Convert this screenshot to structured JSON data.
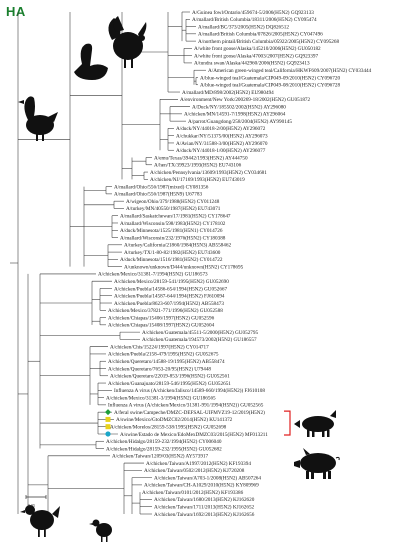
{
  "panel_label": "HA",
  "scale_label": "0.05",
  "highlight_color": "#e02020",
  "marker_colors": {
    "green_diamond": "#1f9e3a",
    "yellow_square": "#e8d21a",
    "cyan_circle": "#1aa6c8"
  },
  "silhouettes": [
    "turkey",
    "swan",
    "duck",
    "pig",
    "chicken"
  ],
  "leaves": [
    "A/Guinea fowl/Ontario/459674-5/2006(H5N2) GQ923133",
    "A/mallard/British Columbia/18311/2006(H5N2) CY095474",
    "A/mallard/BC/373/2005(H5N2) DQ826512",
    "A/mallard/British Columbia/07826/2005(H5N2) CY047496",
    "A/northern pintail/British Columbia/05922/2005(H5N2) CY095268",
    "A/white front goose/Alaska/145210/2006(H5N2) GU050182",
    "A/white front goose/Alaska/47003/2007(H5N2) GQ923397",
    "A/tundra swan/Alaska/442960/2006(H5N2) GQ923413",
    "A/American green-winged teal/California/HKWF609/2007(H5N2) CY033444",
    "A/blue-winged teal/Guatemala/CIP049-09/2010(H5N2) CY096720",
    "A/blue-winged teal/Guatemala/CIP049-08/2010(H5N2) CY096728",
    "A/mallard/MD/898/2002(H5N2) EU980494",
    "A/environment/New York/200269-18/2002(H5N2) GU051872",
    "A/Duck/NY/185502/2002(H5N2) AY296080",
    "A/chicken/MN/14591-7/1998(H5N2) AY296064",
    "A/parrot/Guangdong/258/2004(H5N2) AY990145",
    "A/duck/NY/44018-2/00(H5N2) AY296072",
    "A/chukkar/NY/51375/00(H5N2) AY296073",
    "A/Avian/NY/31588-3/00(H5N2) AY296070",
    "A/duck/NY/44018-1/00(H5N2) AY296077",
    "A/emu/Texas/39442/1993(H5N2) AY444750",
    "A/hen/TX/39923/1993(H5N2) EU743106",
    "A/chicken/Pennsylvania/13609/1993(H5N2) CY034681",
    "A/chicken/NJ/17169/1993(H5N2) EU743019",
    "A/mallard/Ohio/556/1987(mixed) CY081356",
    "A/mallard/Ohio/556/1987(H5N9) U67783",
    "A/wigeon/Ohio/379/1988(H5N2) CY011248",
    "A/turkey/MN/40550/1987(H5N2) EU743071",
    "A/mallard/Saskatchewan/17/1981(H5N2) CY178647",
    "A/mallard/Wisconsin/598/1983(H5N2) CY178102",
    "A/duck/Minnesota/1525/1981(H5N1) CY014726",
    "A/mallard/Wisconsin/232/1976(H5N2) CY180388",
    "A/turkey/California/21860/1984(H5N3) AB558462",
    "A/turkey/TX/1-80-82/1982(H5N2) EU743600",
    "A/duck/Minnesota/1516/1981(H5N2) CY014722",
    "A/unknown/unknown/D444/unknown(H5N2) CY178695",
    "A/chicken/Mexico/31381-7/1994(H5N2) GU186573",
    "A/chicken/Mexico/28159-541/1995(H5N2) GU052690",
    "A/chicken/Puebla/14586-654/1994(H5N2) GU052667",
    "A/chicken/Puebla/14587-644/1994(H5N2) FJ610094",
    "A/chicken/Puebla/8623-607/1994(H5N2) AB558473",
    "A/chicken/Mexico/37821-771/1996(H5N2) GU052588",
    "A/chicken/Chiapas/15406/1997(H5N2) GU052596",
    "A/chicken/Chiapas/15408/1997(H5N2) GU052604",
    "A/chicken/Guatemala/45511-5/2000(H5N2) GU052795",
    "A/chicken/Guatemala/194573/2002(H5N2) GU186557",
    "A/chicken/Chis/15224/1997(H5N2) CY014717",
    "A/chicken/Puebla/2158-479/1995(H5N2) GU052675",
    "A/chicken/Queretaro/14588-19/1995(H5N2) AB558474",
    "A/chicken/Queretaro/7653-20/95(H5N2) U79448",
    "A/chicken/Queretaro/22019-853/1996(H5N2) GU052561",
    "A/chicken/Guanajuato/28159-546/1995(H5N2) GU052651",
    "Influenza A virus (A/chicken/Jalisco/14589-660/1994(H5N2)) FJ610108",
    "A/chicken/Mexico/31381-3/1994(H5N2) GU186565",
    "Influenza A virus (A/chicken/Mexico/31381-991/1994(H5N2)) GU052565",
    "A/feral swine/Campeche/DMZC-DEFSAL-UIFMVZ19-12/2019(H5N2)",
    "A/swine/Mexico/GtoDMZC02/2014(H5N2) KU141372",
    "A/chicken/Morelos/28159-538/1995(H5N2) GU052698",
    "A/swine/Estado de Mexico/EdoMexDMZC03/2015(H5N2) MF013211",
    "A/chicken/Hidalgo/28159-232/1994(H5N2) CY006040",
    "A/chicken/Hidalgo/28159-232/1995(H5N2) GU052682",
    "A/chicken/Taiwan/1209/03(H5N2) AY573917",
    "A/chicken/Taiwan/A1997/2012(H5N2) KF193394",
    "A/chicken/Taiwan/0502/2012(H5N2) KJ720208",
    "A/chicken/Taiwan/A703-1/2008(H5N2) AB507264",
    "A/chicken/Taiwan/CH-A1029/2010(H5N2) KY809969",
    "A/chicken/Taiwan/0101/2012(H5N2) KF193386",
    "A/chicken/Taiwan/1680/2013(H5N2) KJ162620",
    "A/chicken/Taiwan/1711/2013(H5N2) KJ162652",
    "A/chicken/Taiwan/1692/2013(H5N2) KJ162656"
  ]
}
